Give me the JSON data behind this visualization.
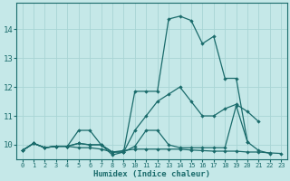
{
  "xlabel": "Humidex (Indice chaleur)",
  "ylabel": "",
  "bg_color": "#c5e8e8",
  "line_color": "#1a6b6b",
  "grid_color": "#a8d4d4",
  "xlim": [
    -0.5,
    23.5
  ],
  "ylim": [
    9.5,
    14.9
  ],
  "yticks": [
    10,
    11,
    12,
    13,
    14
  ],
  "xticks": [
    0,
    1,
    2,
    3,
    4,
    5,
    6,
    7,
    8,
    9,
    10,
    11,
    12,
    13,
    14,
    15,
    16,
    17,
    18,
    19,
    20,
    21,
    22,
    23
  ],
  "series": [
    {
      "x": [
        0,
        1,
        2,
        3,
        4,
        5,
        6,
        7,
        8,
        9,
        10,
        11,
        12,
        13,
        14,
        15,
        16,
        17,
        18,
        19,
        20,
        21,
        22,
        23
      ],
      "y": [
        9.8,
        10.05,
        9.9,
        9.95,
        9.95,
        9.9,
        9.9,
        9.85,
        9.75,
        9.8,
        9.85,
        9.85,
        9.85,
        9.85,
        9.85,
        9.82,
        9.8,
        9.78,
        9.78,
        9.78,
        9.75,
        9.75,
        9.72,
        9.7
      ]
    },
    {
      "x": [
        0,
        1,
        2,
        3,
        4,
        5,
        6,
        7,
        8,
        9,
        10,
        11,
        12,
        13,
        14,
        15,
        16,
        17,
        18,
        19,
        20,
        21,
        22
      ],
      "y": [
        9.8,
        10.05,
        9.9,
        9.95,
        9.95,
        10.5,
        10.5,
        10.0,
        9.65,
        9.75,
        9.95,
        10.5,
        10.5,
        10.0,
        9.9,
        9.9,
        9.9,
        9.9,
        9.9,
        11.35,
        10.1,
        9.8,
        9.7
      ]
    },
    {
      "x": [
        0,
        1,
        2,
        3,
        4,
        5,
        6,
        7,
        8,
        9,
        10,
        11,
        12,
        13,
        14,
        15,
        16,
        17,
        18,
        19,
        20,
        21
      ],
      "y": [
        9.8,
        10.05,
        9.9,
        9.95,
        9.95,
        10.05,
        10.0,
        10.0,
        9.75,
        9.75,
        10.5,
        11.0,
        11.5,
        11.75,
        12.0,
        11.5,
        11.0,
        11.0,
        11.25,
        11.4,
        11.15,
        10.8
      ]
    },
    {
      "x": [
        0,
        1,
        2,
        3,
        4,
        5,
        6,
        7,
        8,
        9,
        10,
        11,
        12,
        13,
        14,
        15,
        16,
        17,
        18,
        19,
        20
      ],
      "y": [
        9.8,
        10.05,
        9.9,
        9.95,
        9.95,
        10.05,
        10.0,
        10.0,
        9.75,
        9.75,
        11.85,
        11.85,
        11.85,
        14.35,
        14.45,
        14.3,
        13.5,
        13.75,
        12.3,
        12.3,
        10.1
      ]
    }
  ]
}
